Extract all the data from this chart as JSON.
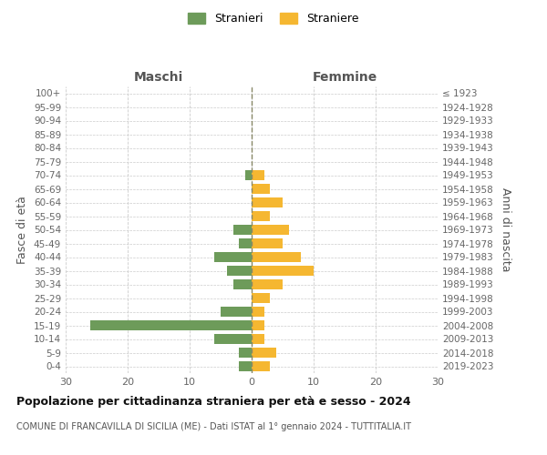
{
  "age_groups": [
    "0-4",
    "5-9",
    "10-14",
    "15-19",
    "20-24",
    "25-29",
    "30-34",
    "35-39",
    "40-44",
    "45-49",
    "50-54",
    "55-59",
    "60-64",
    "65-69",
    "70-74",
    "75-79",
    "80-84",
    "85-89",
    "90-94",
    "95-99",
    "100+"
  ],
  "birth_years": [
    "2019-2023",
    "2014-2018",
    "2009-2013",
    "2004-2008",
    "1999-2003",
    "1994-1998",
    "1989-1993",
    "1984-1988",
    "1979-1983",
    "1974-1978",
    "1969-1973",
    "1964-1968",
    "1959-1963",
    "1954-1958",
    "1949-1953",
    "1944-1948",
    "1939-1943",
    "1934-1938",
    "1929-1933",
    "1924-1928",
    "≤ 1923"
  ],
  "males": [
    2,
    2,
    6,
    26,
    5,
    0,
    3,
    4,
    6,
    2,
    3,
    0,
    0,
    0,
    1,
    0,
    0,
    0,
    0,
    0,
    0
  ],
  "females": [
    3,
    4,
    2,
    2,
    2,
    3,
    5,
    10,
    8,
    5,
    6,
    3,
    5,
    3,
    2,
    0,
    0,
    0,
    0,
    0,
    0
  ],
  "male_color": "#6d9b5a",
  "female_color": "#f5b731",
  "bg_color": "#ffffff",
  "grid_color": "#cccccc",
  "center_line_color": "#888866",
  "title": "Popolazione per cittadinanza straniera per età e sesso - 2024",
  "subtitle": "COMUNE DI FRANCAVILLA DI SICILIA (ME) - Dati ISTAT al 1° gennaio 2024 - TUTTITALIA.IT",
  "ylabel_left": "Fasce di età",
  "ylabel_right": "Anni di nascita",
  "header_left": "Maschi",
  "header_right": "Femmine",
  "legend_male": "Stranieri",
  "legend_female": "Straniere",
  "xlim": 30,
  "bar_height": 0.75
}
